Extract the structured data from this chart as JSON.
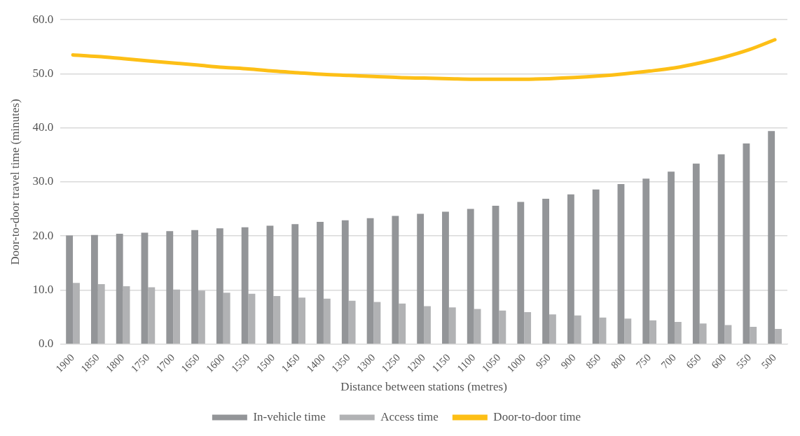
{
  "chart_data": {
    "type": "bar",
    "xlabel": "Distance between stations (metres)",
    "ylabel": "Door-to-door travel time (minutes)",
    "categories": [
      "1900",
      "1850",
      "1800",
      "1750",
      "1700",
      "1650",
      "1600",
      "1550",
      "1500",
      "1450",
      "1400",
      "1350",
      "1300",
      "1250",
      "1200",
      "1150",
      "1100",
      "1050",
      "1000",
      "950",
      "900",
      "850",
      "800",
      "750",
      "700",
      "650",
      "600",
      "550",
      "500"
    ],
    "series": [
      {
        "name": "In-vehicle time",
        "color": "#939598",
        "values": [
          20.1,
          20.2,
          20.4,
          20.6,
          20.9,
          21.1,
          21.4,
          21.6,
          21.9,
          22.2,
          22.6,
          22.9,
          23.3,
          23.7,
          24.1,
          24.5,
          25.0,
          25.6,
          26.3,
          26.9,
          27.7,
          28.6,
          29.6,
          30.6,
          31.9,
          33.4,
          35.1,
          37.1,
          39.4
        ]
      },
      {
        "name": "Access time",
        "color": "#b1b2b4",
        "values": [
          11.3,
          11.1,
          10.7,
          10.5,
          10.1,
          9.9,
          9.5,
          9.3,
          8.9,
          8.6,
          8.4,
          8.0,
          7.8,
          7.5,
          7.0,
          6.8,
          6.5,
          6.2,
          5.9,
          5.5,
          5.3,
          4.9,
          4.7,
          4.4,
          4.1,
          3.8,
          3.5,
          3.2,
          2.8
        ]
      },
      {
        "name": "Door-to-door time",
        "type": "line",
        "color": "#fdbf16",
        "values": [
          53.5,
          53.2,
          52.8,
          52.4,
          52.0,
          51.6,
          51.2,
          50.9,
          50.5,
          50.2,
          49.9,
          49.7,
          49.5,
          49.3,
          49.2,
          49.1,
          49.0,
          49.0,
          49.0,
          49.1,
          49.3,
          49.6,
          50.0,
          50.5,
          51.1,
          52.0,
          53.1,
          54.5,
          56.3
        ]
      }
    ],
    "ylim": [
      0,
      60
    ],
    "yticks": [
      {
        "value": 0,
        "label": "0.0"
      },
      {
        "value": 10,
        "label": "10.0"
      },
      {
        "value": 20,
        "label": "20.0"
      },
      {
        "value": 30,
        "label": "30.0"
      },
      {
        "value": 40,
        "label": "40.0"
      },
      {
        "value": 50,
        "label": "50.0"
      },
      {
        "value": 60,
        "label": "60.0"
      }
    ],
    "grid": "y",
    "legend": "bottom",
    "marker": "none"
  }
}
